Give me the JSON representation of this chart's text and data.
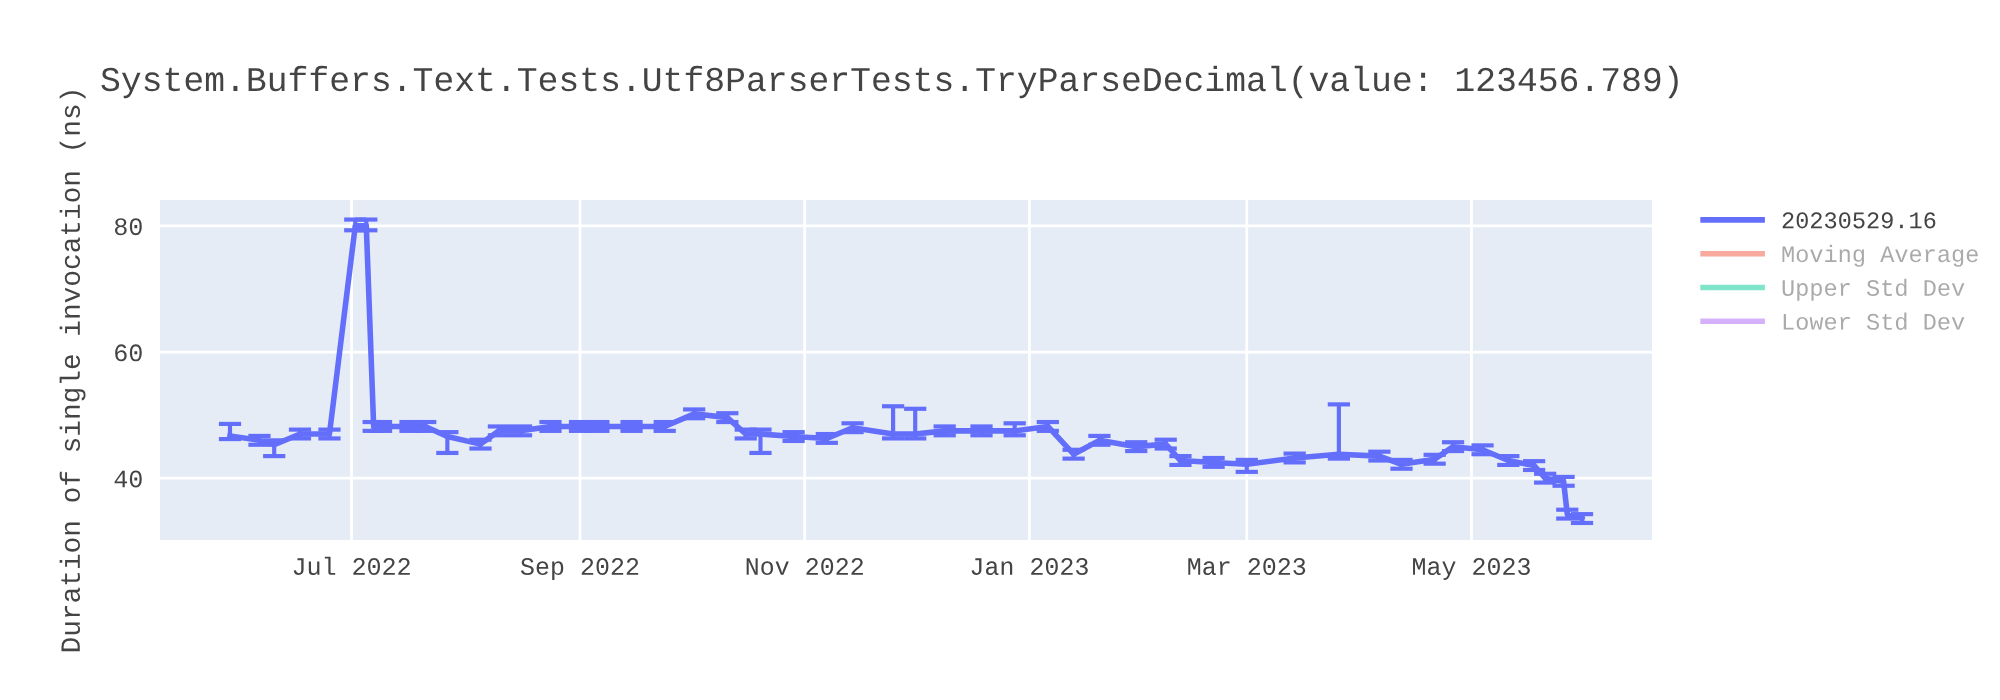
{
  "chart_data": {
    "type": "line",
    "title": "System.Buffers.Text.Tests.Utf8ParserTests.TryParseDecimal(value: 123456.789)",
    "ylabel": "Duration of single invocation (ns)",
    "x": [
      "2022-05-29",
      "2022-06-06",
      "2022-06-10",
      "2022-06-17",
      "2022-06-25",
      "2022-07-02",
      "2022-07-05",
      "2022-07-07",
      "2022-07-09",
      "2022-07-17",
      "2022-07-21",
      "2022-07-27",
      "2022-08-05",
      "2022-08-10",
      "2022-08-16",
      "2022-08-24",
      "2022-09-01",
      "2022-09-06",
      "2022-09-15",
      "2022-09-24",
      "2022-10-02",
      "2022-10-11",
      "2022-10-16",
      "2022-10-20",
      "2022-10-29",
      "2022-11-07",
      "2022-11-14",
      "2022-11-25",
      "2022-12-01",
      "2022-12-09",
      "2022-12-19",
      "2022-12-28",
      "2023-01-06",
      "2023-01-13",
      "2023-01-20",
      "2023-01-30",
      "2023-02-07",
      "2023-02-11",
      "2023-02-20",
      "2023-03-01",
      "2023-03-14",
      "2023-03-26",
      "2023-04-06",
      "2023-04-12",
      "2023-04-21",
      "2023-04-26",
      "2023-05-04",
      "2023-05-11",
      "2023-05-18",
      "2023-05-21",
      "2023-05-26",
      "2023-05-27",
      "2023-05-31"
    ],
    "series": [
      {
        "name": "20230529.16",
        "color": "#636efa",
        "values": [
          46.7,
          46,
          45.3,
          47,
          47,
          80,
          80,
          48.2,
          48.2,
          48.2,
          48.2,
          46.6,
          45.4,
          47.5,
          47.5,
          48.2,
          48.2,
          48.2,
          48.2,
          48.2,
          50.2,
          49.6,
          47,
          47,
          46.6,
          46.3,
          48,
          47,
          47,
          47.5,
          47.5,
          47.5,
          48.2,
          43.8,
          46,
          45,
          45.4,
          42.8,
          42.5,
          42.2,
          43.2,
          43.8,
          43.5,
          42.2,
          43,
          45,
          44.5,
          42.8,
          42,
          40,
          39.5,
          34.3,
          33.6
        ],
        "errors": [
          [
            46.2,
            48.6
          ],
          0.7,
          [
            43.5,
            46
          ],
          0.7,
          0.7,
          [
            79.3,
            81
          ],
          [
            79.3,
            81
          ],
          0.7,
          0.7,
          0.7,
          0.7,
          [
            44,
            47.3
          ],
          0.7,
          0.7,
          0.7,
          0.7,
          0.7,
          0.7,
          0.7,
          0.7,
          0.7,
          0.7,
          0.7,
          [
            44,
            47.7
          ],
          0.7,
          0.7,
          0.7,
          [
            46.3,
            51.4
          ],
          [
            46.3,
            51
          ],
          0.7,
          0.7,
          [
            46.8,
            48.7
          ],
          0.7,
          0.7,
          0.7,
          0.7,
          0.7,
          0.7,
          0.7,
          [
            41,
            42.9
          ],
          0.7,
          [
            43.1,
            51.7
          ],
          0.7,
          0.7,
          0.7,
          0.7,
          0.7,
          0.7,
          0.7,
          0.7,
          0.7,
          0.7,
          0.7
        ]
      },
      {
        "name": "Moving Average",
        "color": "#ef553b",
        "values": [
          null,
          null,
          null,
          null,
          null,
          null,
          null,
          null,
          null,
          null,
          null,
          null,
          null,
          null,
          null,
          null,
          null,
          null,
          null,
          null,
          null,
          null,
          null,
          null,
          null,
          null,
          null,
          null,
          null,
          null,
          null,
          null,
          null,
          null,
          null,
          null,
          null,
          null,
          null,
          null,
          null,
          null,
          null,
          null,
          null,
          null,
          null,
          null,
          null,
          null,
          null,
          null,
          null
        ]
      },
      {
        "name": "Upper Std Dev",
        "color": "#00cc96",
        "values": [
          null,
          null,
          null,
          null,
          null,
          null,
          null,
          null,
          null,
          null,
          null,
          null,
          null,
          null,
          null,
          null,
          null,
          null,
          null,
          null,
          null,
          null,
          null,
          null,
          null,
          null,
          null,
          null,
          null,
          null,
          null,
          null,
          null,
          null,
          null,
          null,
          null,
          null,
          null,
          null,
          null,
          null,
          null,
          null,
          null,
          null,
          null,
          null,
          null,
          null,
          null,
          null,
          null
        ]
      },
      {
        "name": "Lower Std Dev",
        "color": "#ab63fa",
        "values": [
          null,
          null,
          null,
          null,
          null,
          null,
          null,
          null,
          null,
          null,
          null,
          null,
          null,
          null,
          null,
          null,
          null,
          null,
          null,
          null,
          null,
          null,
          null,
          null,
          null,
          null,
          null,
          null,
          null,
          null,
          null,
          null,
          null,
          null,
          null,
          null,
          null,
          null,
          null,
          null,
          null,
          null,
          null,
          null,
          null,
          null,
          null,
          null,
          null,
          null,
          null,
          null,
          null
        ]
      }
    ],
    "xlim": [
      "2022-05-10",
      "2023-06-19"
    ],
    "xticks": [
      {
        "value": "2022-07-01",
        "label": "Jul 2022"
      },
      {
        "value": "2022-09-01",
        "label": "Sep 2022"
      },
      {
        "value": "2022-11-01",
        "label": "Nov 2022"
      },
      {
        "value": "2023-01-01",
        "label": "Jan 2023"
      },
      {
        "value": "2023-03-01",
        "label": "Mar 2023"
      },
      {
        "value": "2023-05-01",
        "label": "May 2023"
      }
    ],
    "ylim": [
      30.2,
      84.1
    ],
    "yticks": [
      40,
      60,
      80
    ],
    "grid": true,
    "legend": "top right"
  }
}
